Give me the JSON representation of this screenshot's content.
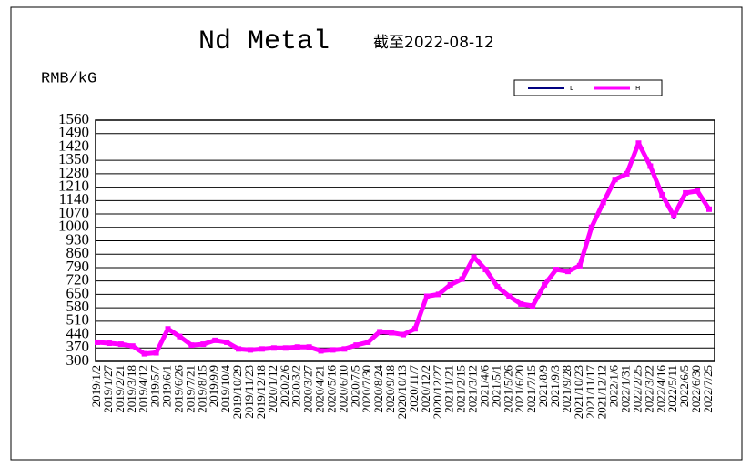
{
  "chart_data": {
    "type": "line",
    "title": "Nd Metal",
    "subtitle": "截至2022-08-12",
    "y_label": "RMB/kG",
    "categories": [
      "2019/1/2",
      "2019/1/27",
      "2019/2/21",
      "2019/3/18",
      "2019/4/12",
      "2019/5/7",
      "2019/6/1",
      "2019/6/26",
      "2019/7/21",
      "2019/8/15",
      "2019/9/9",
      "2019/10/4",
      "2019/10/29",
      "2019/11/23",
      "2019/12/18",
      "2020/1/12",
      "2020/2/6",
      "2020/3/2",
      "2020/3/27",
      "2020/4/21",
      "2020/5/16",
      "2020/6/10",
      "2020/7/5",
      "2020/7/30",
      "2020/8/24",
      "2020/9/18",
      "2020/10/13",
      "2020/11/7",
      "2020/12/2",
      "2020/12/27",
      "2021/1/21",
      "2021/2/15",
      "2021/3/12",
      "2021/4/6",
      "2021/5/1",
      "2021/5/26",
      "2021/6/20",
      "2021/7/15",
      "2021/8/9",
      "2021/9/3",
      "2021/9/28",
      "2021/10/23",
      "2021/11/17",
      "2021/12/12",
      "2022/1/6",
      "2022/1/31",
      "2022/2/25",
      "2022/3/22",
      "2022/4/16",
      "2022/5/11",
      "2022/6/5",
      "2022/6/30",
      "2022/7/25"
    ],
    "series": [
      {
        "name": "L",
        "color": "#000080",
        "values": [
          400,
          395,
          390,
          380,
          340,
          345,
          465,
          430,
          385,
          390,
          410,
          400,
          365,
          360,
          365,
          370,
          370,
          375,
          375,
          355,
          360,
          365,
          385,
          400,
          455,
          450,
          440,
          470,
          635,
          645,
          700,
          725,
          840,
          780,
          690,
          635,
          600,
          585,
          700,
          775,
          770,
          795,
          995,
          1125,
          1245,
          1275,
          1435,
          1315,
          1165,
          1050,
          1175,
          1185,
          1090
        ]
      },
      {
        "name": "H",
        "color": "#ff00ff",
        "values": [
          400,
          395,
          390,
          380,
          340,
          345,
          470,
          430,
          385,
          390,
          410,
          400,
          365,
          360,
          365,
          370,
          370,
          375,
          375,
          355,
          360,
          365,
          385,
          400,
          455,
          450,
          440,
          470,
          640,
          650,
          700,
          730,
          845,
          780,
          690,
          640,
          600,
          590,
          700,
          780,
          770,
          800,
          1000,
          1130,
          1250,
          1280,
          1440,
          1320,
          1170,
          1060,
          1180,
          1190,
          1095
        ]
      }
    ],
    "ylim": [
      300,
      1560
    ],
    "yticks": [
      300,
      370,
      440,
      510,
      580,
      650,
      720,
      790,
      860,
      930,
      1000,
      1070,
      1140,
      1210,
      1280,
      1350,
      1420,
      1490,
      1560
    ],
    "grid": true,
    "legend": "top-right"
  }
}
